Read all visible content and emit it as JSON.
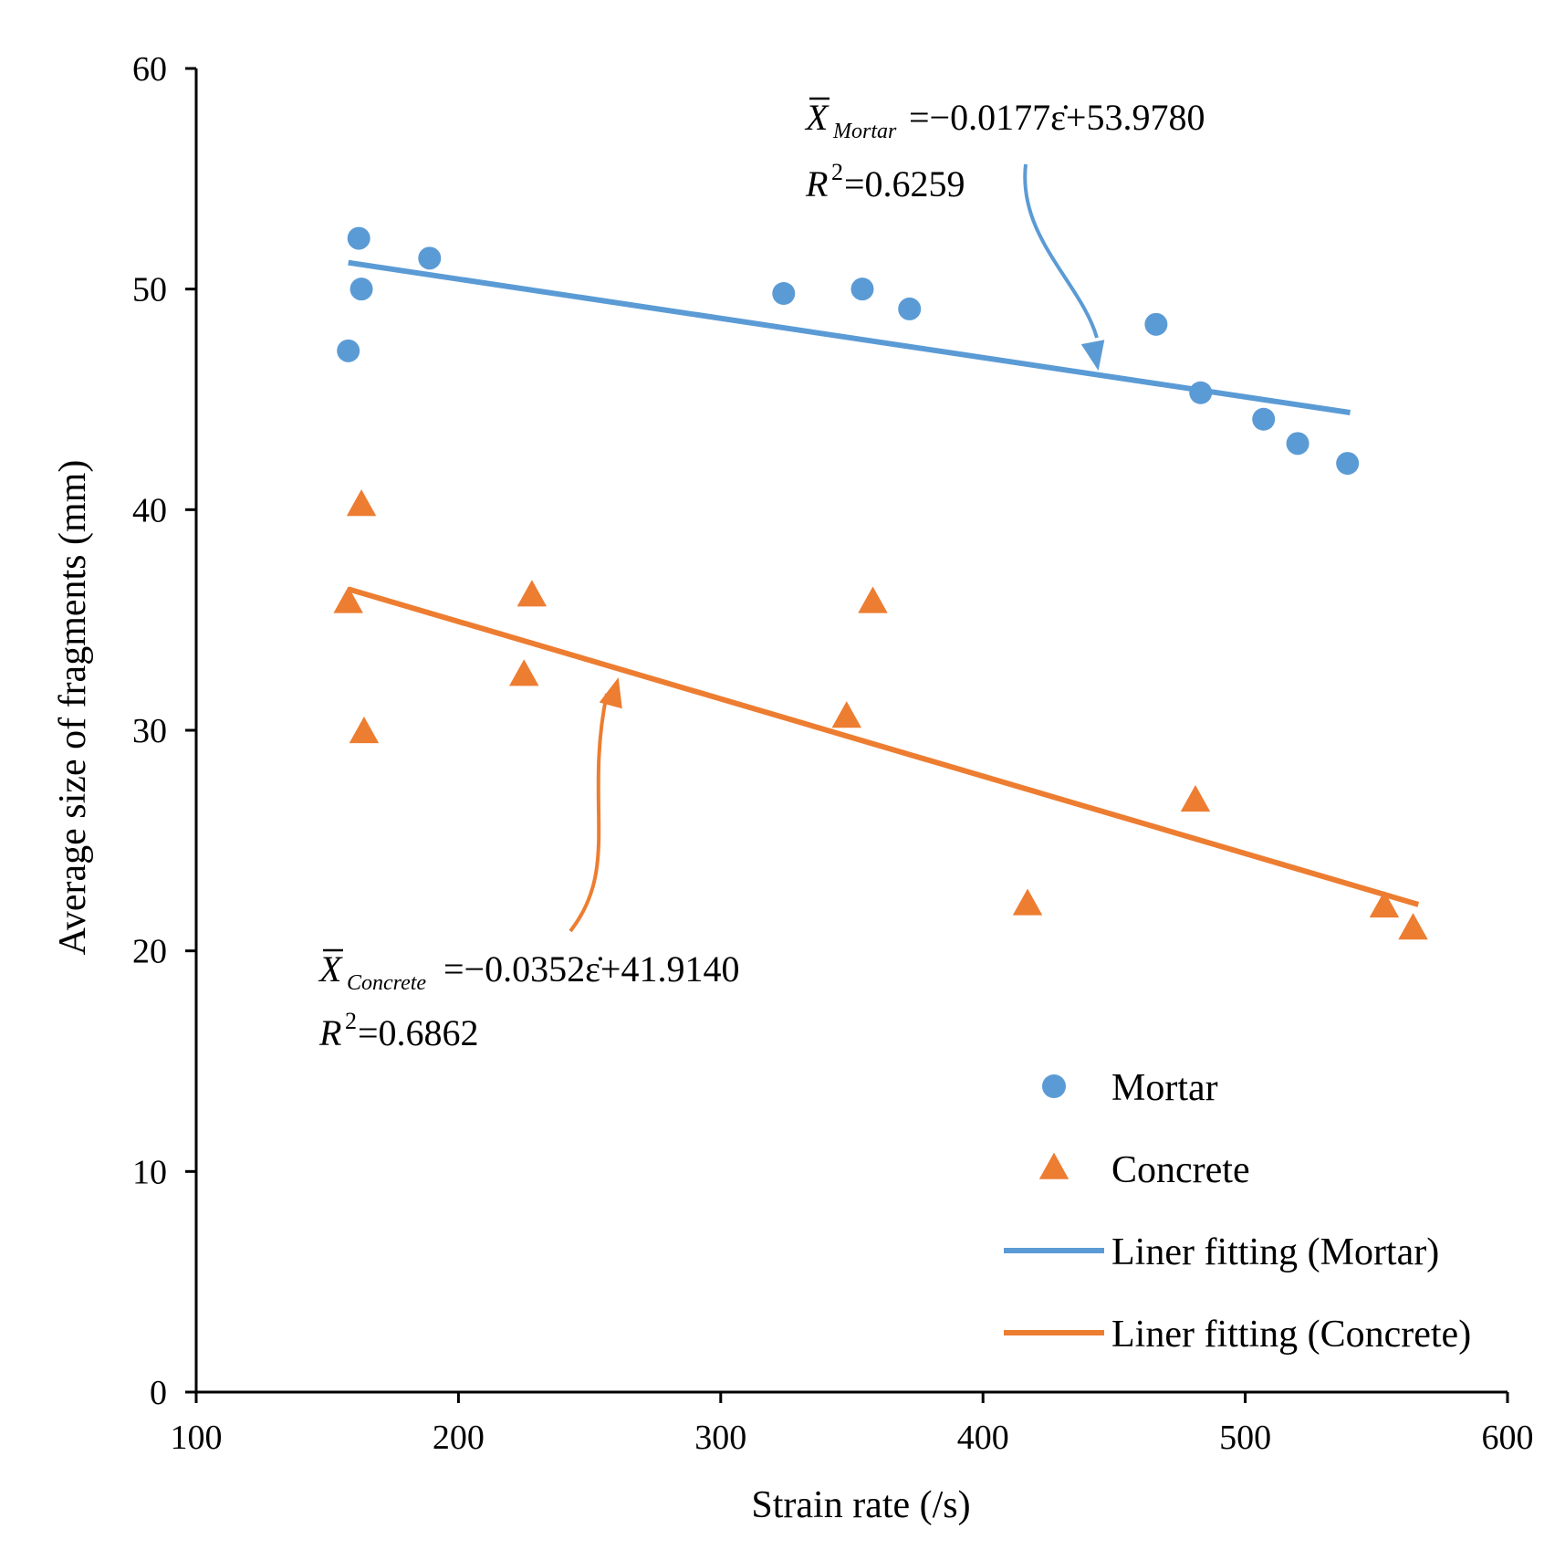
{
  "chart_data": {
    "type": "scatter",
    "title": "",
    "xlabel": "Strain rate (/s)",
    "ylabel": "Average size of fragments (mm)",
    "xlim": [
      100,
      600
    ],
    "ylim": [
      0,
      60
    ],
    "xticks": [
      100,
      200,
      300,
      400,
      500,
      600
    ],
    "yticks": [
      0,
      10,
      20,
      30,
      40,
      50,
      60
    ],
    "grid": false,
    "legend_position": "bottom-right",
    "colors": {
      "mortar": "#5B9BD5",
      "concrete": "#ED7D31",
      "axis": "#000000"
    },
    "series": [
      {
        "name": "Mortar",
        "kind": "scatter",
        "marker": "circle",
        "points": [
          [
            158,
            47.2
          ],
          [
            162,
            52.3
          ],
          [
            163,
            50.0
          ],
          [
            189,
            51.4
          ],
          [
            324,
            49.8
          ],
          [
            354,
            50.0
          ],
          [
            372,
            49.1
          ],
          [
            466,
            48.4
          ],
          [
            483,
            45.3
          ],
          [
            507,
            44.1
          ],
          [
            520,
            43.0
          ],
          [
            539,
            42.1
          ]
        ]
      },
      {
        "name": "Concrete",
        "kind": "scatter",
        "marker": "triangle",
        "points": [
          [
            158,
            35.8
          ],
          [
            163,
            40.2
          ],
          [
            164,
            29.9
          ],
          [
            225,
            32.5
          ],
          [
            228,
            36.1
          ],
          [
            348,
            30.6
          ],
          [
            358,
            35.8
          ],
          [
            417,
            22.1
          ],
          [
            481,
            26.8
          ],
          [
            553,
            22.0
          ],
          [
            564,
            21.0
          ]
        ]
      },
      {
        "name": "Liner fitting (Mortar)",
        "kind": "line",
        "points": [
          [
            158,
            51.2
          ],
          [
            540,
            44.4
          ]
        ]
      },
      {
        "name": "Liner fitting (Concrete)",
        "kind": "line",
        "points": [
          [
            158,
            36.4
          ],
          [
            566,
            22.1
          ]
        ]
      }
    ],
    "annotations": [
      {
        "series": "Mortar",
        "symbol": "X",
        "subscript": "Mortar",
        "equation": "=−0.0177ε̇+53.9780",
        "r2_label": "R",
        "r2_value": "=0.6259",
        "arrow_target": [
          444,
          46.3
        ]
      },
      {
        "series": "Concrete",
        "symbol": "X",
        "subscript": "Concrete",
        "equation": "=−0.0352ε̇+41.9140",
        "r2_label": "R",
        "r2_value": "=0.6862",
        "arrow_target": [
          261,
          32.4
        ]
      }
    ]
  }
}
